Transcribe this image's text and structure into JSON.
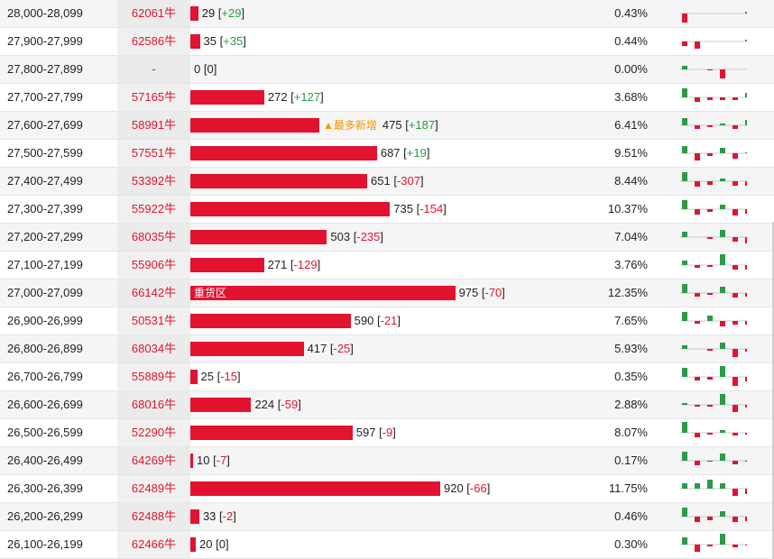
{
  "hints": {
    "most_new": "▲最多新增",
    "heavy": "重货区"
  },
  "colors": {
    "red": "#e3122f",
    "green": "#2a9b48",
    "baseline": "#999999",
    "orange": "#f39800"
  },
  "rows": [
    {
      "range": "28,000-28,099",
      "code": "62061牛",
      "count": "29",
      "change": "+29",
      "pct": "0.43%",
      "ratio": 0.0295,
      "spark": [
        -10,
        0,
        0,
        0,
        0,
        2
      ]
    },
    {
      "range": "27,900-27,999",
      "code": "62586牛",
      "count": "35",
      "change": "+35",
      "pct": "0.44%",
      "ratio": 0.0356,
      "spark": [
        -5,
        -8,
        0,
        0,
        0,
        2
      ]
    },
    {
      "range": "27,800-27,899",
      "code": "-",
      "count": "0",
      "change": "0",
      "pct": "0.00%",
      "ratio": 0,
      "spark": [
        4,
        0,
        -1,
        -10,
        0,
        0
      ]
    },
    {
      "range": "27,700-27,799",
      "code": "57165牛",
      "count": "272",
      "change": "+127",
      "pct": "3.68%",
      "ratio": 0.2766,
      "spark": [
        10,
        -5,
        -3,
        -3,
        -3,
        5
      ]
    },
    {
      "range": "27,600-27,699",
      "code": "58991牛",
      "count": "475",
      "change": "+187",
      "pct": "6.41%",
      "ratio": 0.4831,
      "spark": [
        8,
        -4,
        -2,
        2,
        -4,
        6
      ],
      "hint": "most_new"
    },
    {
      "range": "27,500-27,599",
      "code": "57551牛",
      "count": "687",
      "change": "+19",
      "pct": "9.51%",
      "ratio": 0.6988,
      "spark": [
        8,
        -8,
        -3,
        6,
        -6,
        1
      ]
    },
    {
      "range": "27,400-27,499",
      "code": "53392牛",
      "count": "651",
      "change": "-307",
      "pct": "8.44%",
      "ratio": 0.6622,
      "spark": [
        10,
        -6,
        -4,
        3,
        -5,
        -5
      ]
    },
    {
      "range": "27,300-27,399",
      "code": "55922牛",
      "count": "735",
      "change": "-154",
      "pct": "10.37%",
      "ratio": 0.7476,
      "spark": [
        10,
        -6,
        -3,
        5,
        -7,
        -5
      ]
    },
    {
      "range": "27,200-27,299",
      "code": "68035牛",
      "count": "503",
      "change": "-235",
      "pct": "7.04%",
      "ratio": 0.5116,
      "spark": [
        6,
        0,
        -2,
        8,
        -5,
        -7
      ]
    },
    {
      "range": "27,100-27,199",
      "code": "55906牛",
      "count": "271",
      "change": "-129",
      "pct": "3.76%",
      "ratio": 0.2757,
      "spark": [
        5,
        -3,
        -2,
        12,
        -5,
        -5
      ]
    },
    {
      "range": "27,000-27,099",
      "code": "66142牛",
      "count": "975",
      "change": "-70",
      "pct": "12.35%",
      "ratio": 0.9918,
      "spark": [
        10,
        -4,
        -2,
        7,
        -5,
        -4
      ],
      "hint": "heavy"
    },
    {
      "range": "26,900-26,999",
      "code": "50531牛",
      "count": "590",
      "change": "-21",
      "pct": "7.65%",
      "ratio": 0.6001,
      "spark": [
        10,
        -3,
        6,
        -6,
        -4,
        -4
      ]
    },
    {
      "range": "26,800-26,899",
      "code": "68034牛",
      "count": "417",
      "change": "-25",
      "pct": "5.93%",
      "ratio": 0.4242,
      "spark": [
        4,
        0,
        -2,
        7,
        -9,
        -3
      ]
    },
    {
      "range": "26,700-26,799",
      "code": "55889牛",
      "count": "25",
      "change": "-15",
      "pct": "0.35%",
      "ratio": 0.0254,
      "spark": [
        10,
        -4,
        -3,
        12,
        -10,
        -5
      ]
    },
    {
      "range": "26,600-26,699",
      "code": "68016牛",
      "count": "224",
      "change": "-59",
      "pct": "2.88%",
      "ratio": 0.2279,
      "spark": [
        2,
        -2,
        -2,
        12,
        -8,
        -3
      ]
    },
    {
      "range": "26,500-26,599",
      "code": "52290牛",
      "count": "597",
      "change": "-9",
      "pct": "8.07%",
      "ratio": 0.6073,
      "spark": [
        12,
        -5,
        -2,
        3,
        -3,
        -2
      ]
    },
    {
      "range": "26,400-26,499",
      "code": "64269牛",
      "count": "10",
      "change": "-7",
      "pct": "0.17%",
      "ratio": 0.0102,
      "spark": [
        10,
        -5,
        -1,
        8,
        -4,
        -1
      ]
    },
    {
      "range": "26,300-26,399",
      "code": "62489牛",
      "count": "920",
      "change": "-66",
      "pct": "11.75%",
      "ratio": 0.9358,
      "spark": [
        6,
        6,
        10,
        6,
        -8,
        -6
      ]
    },
    {
      "range": "26,200-26,299",
      "code": "62488牛",
      "count": "33",
      "change": "-2",
      "pct": "0.46%",
      "ratio": 0.0336,
      "spark": [
        10,
        -6,
        -4,
        6,
        -6,
        -5
      ]
    },
    {
      "range": "26,100-26,199",
      "code": "62466牛",
      "count": "20",
      "change": "0",
      "pct": "0.30%",
      "ratio": 0.0203,
      "spark": [
        8,
        -8,
        -2,
        12,
        -3,
        -1
      ]
    }
  ]
}
